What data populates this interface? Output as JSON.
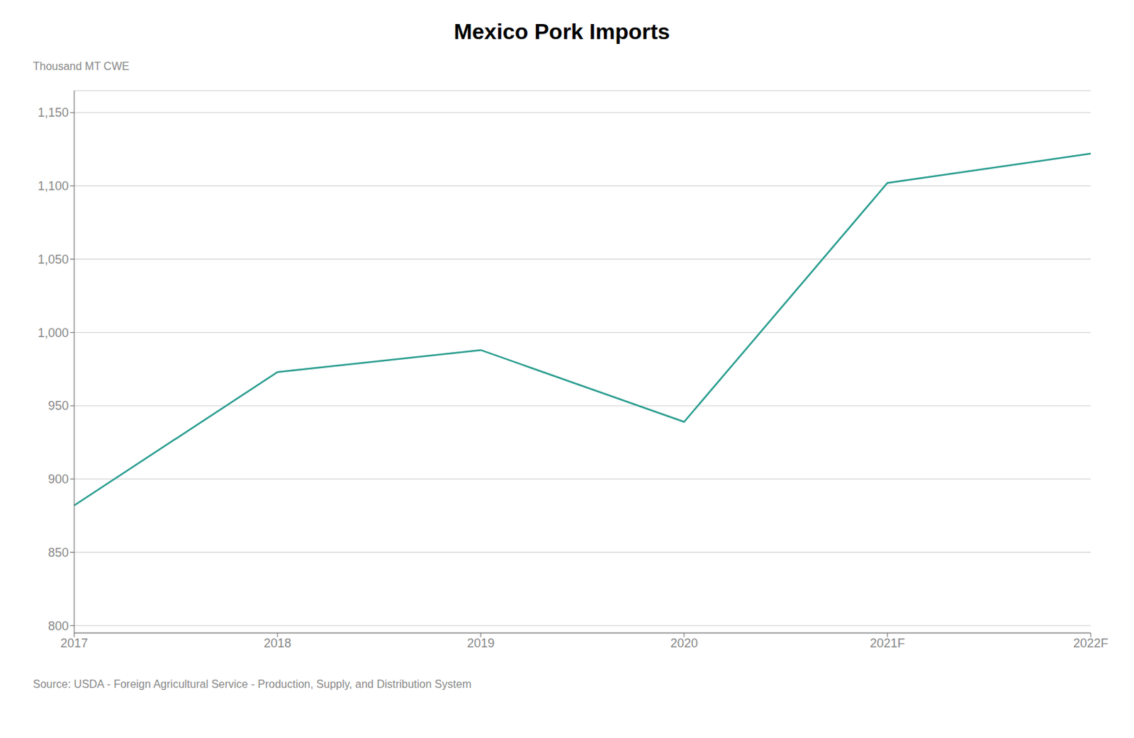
{
  "chart_data": {
    "type": "line",
    "title": "Mexico Pork Imports",
    "ylabel": "Thousand MT CWE",
    "annotations": [
      "Source: USDA - Foreign Agricultural Service - Production, Supply, and Distribution System"
    ],
    "categories": [
      "2017",
      "2018",
      "2019",
      "2020",
      "2021F",
      "2022F"
    ],
    "values": [
      882,
      973,
      988,
      939,
      1102,
      1122
    ],
    "color": "#2a9d8f",
    "ylim": [
      795,
      1165
    ],
    "yticks": [
      800,
      850,
      900,
      950,
      {
        "value": 1000,
        "label": "1,000"
      },
      {
        "value": 1050,
        "label": "1,050"
      },
      {
        "value": 1100,
        "label": "1,100"
      },
      {
        "value": 1150,
        "label": "1,150"
      }
    ],
    "grid": true
  }
}
